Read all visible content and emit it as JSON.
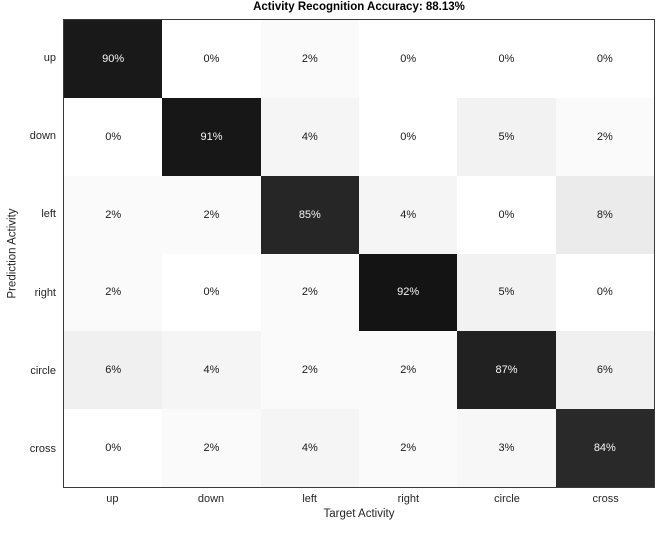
{
  "chart_data": {
    "type": "heatmap",
    "title": "Activity Recognition Accuracy: 88.13%",
    "xlabel": "Target Activity",
    "ylabel": "Prediction Activity",
    "x_categories": [
      "up",
      "down",
      "left",
      "right",
      "circle",
      "cross"
    ],
    "y_categories": [
      "up",
      "down",
      "left",
      "right",
      "circle",
      "cross"
    ],
    "values_percent": [
      [
        90,
        0,
        2,
        0,
        0,
        0
      ],
      [
        0,
        91,
        4,
        0,
        5,
        2
      ],
      [
        2,
        2,
        85,
        4,
        0,
        8
      ],
      [
        2,
        0,
        2,
        92,
        5,
        0
      ],
      [
        6,
        4,
        2,
        2,
        87,
        6
      ],
      [
        0,
        2,
        4,
        2,
        3,
        84
      ]
    ],
    "cell_label_format": "{value}%",
    "value_range": [
      0,
      100
    ],
    "colormap": "linear white (0%) to black (100%), higher value = darker",
    "legend": "none",
    "grid": "off",
    "colors": {
      "background": "#ffffff",
      "cell_low": "#ffffff",
      "cell_high": "#000000",
      "axis_line": "#3a3a3a",
      "tick_text": "#262626",
      "title_text": "#000000",
      "cell_text_dark": "#1a1a1a",
      "cell_text_light": "#f5f5f5"
    }
  }
}
